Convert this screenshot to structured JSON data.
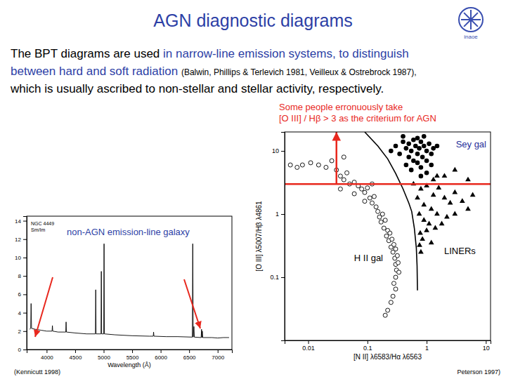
{
  "title": "AGN diagnostic diagrams",
  "logo_text": "inaoe",
  "body_lines": [
    [
      {
        "text": "The BPT diagrams are used ",
        "style": "plain"
      },
      {
        "text": "in narrow-line emission systems, to distinguish",
        "style": "highlight"
      }
    ],
    [
      {
        "text": "between hard and soft radiation ",
        "style": "highlight"
      },
      {
        "text": "(Balwin, Phillips & Terlevich 1981, Veilleux & Ostrebrock 1987),",
        "style": "citation"
      }
    ],
    [
      {
        "text": "which is usually ascribed to non-stellar and stellar activity, respectively.",
        "style": "plain"
      }
    ]
  ],
  "chart_data": [
    {
      "type": "scatter",
      "log": true,
      "xlim": [
        0.004,
        12
      ],
      "ylim": [
        0.01,
        20
      ],
      "xticks": [
        0.01,
        0.1,
        1,
        10
      ],
      "yticks": [
        0.1,
        1,
        10
      ],
      "x_label": "[N II] λ6583/Hα λ6563",
      "y_label": "[O III] λ5007/Hβ λ4861",
      "region_labels": [
        "Sey gal",
        "H II gal",
        "LINERs"
      ],
      "note": [
        "Some people erronuously take",
        "[O III] / Hβ > 3 as the criterium for AGN"
      ],
      "source": "Peterson 1997)",
      "series": [
        {
          "type": "scatter",
          "marker": "open-circle",
          "color": "#000000",
          "x": [
            0.005,
            0.0065,
            0.008,
            0.011,
            0.015,
            0.02,
            0.025,
            0.03,
            0.035,
            0.04,
            0.045,
            0.05,
            0.06,
            0.07,
            0.08,
            0.09,
            0.1,
            0.11,
            0.12,
            0.13,
            0.14,
            0.15,
            0.16,
            0.18,
            0.17,
            0.2,
            0.19,
            0.22,
            0.21,
            0.24,
            0.23,
            0.26,
            0.25,
            0.28,
            0.27,
            0.3,
            0.29,
            0.32,
            0.3,
            0.33,
            0.31,
            0.34,
            0.3,
            0.28,
            0.3,
            0.27,
            0.25,
            0.22,
            0.2,
            0.035,
            0.06,
            0.09,
            0.12,
            0.04
          ],
          "values": [
            6,
            5.5,
            6,
            6.5,
            6,
            5.5,
            7,
            5,
            4,
            3.5,
            4.5,
            3,
            3.2,
            2.8,
            2.5,
            2.2,
            2.6,
            1.8,
            1.5,
            1.9,
            1.3,
            1.1,
            0.9,
            1,
            0.75,
            0.8,
            0.6,
            0.55,
            0.45,
            0.5,
            0.38,
            0.4,
            0.3,
            0.33,
            0.25,
            0.28,
            0.2,
            0.22,
            0.16,
            0.17,
            0.13,
            0.12,
            0.1,
            0.08,
            0.065,
            0.05,
            0.04,
            0.03,
            0.025,
            2.5,
            2.1,
            1.6,
            3,
            8
          ]
        },
        {
          "type": "scatter",
          "marker": "filled-circle",
          "color": "#000000",
          "x": [
            0.3,
            0.35,
            0.4,
            0.45,
            0.5,
            0.55,
            0.6,
            0.65,
            0.7,
            0.75,
            0.8,
            0.85,
            0.9,
            1,
            1.1,
            1.2,
            1.3,
            0.5,
            0.6,
            0.7,
            0.8,
            0.45,
            1,
            1.5,
            0.4,
            0.7,
            0.9,
            0.25,
            0.55,
            1.2,
            0.8,
            1
          ],
          "values": [
            12,
            9,
            14,
            11,
            13,
            10,
            15,
            12,
            9,
            11,
            14,
            8,
            12,
            10,
            13,
            9,
            11,
            8,
            7,
            6.5,
            5.5,
            6,
            7,
            12,
            17,
            16,
            17,
            10,
            5,
            6,
            4,
            4.5
          ]
        },
        {
          "type": "scatter",
          "marker": "triangle",
          "color": "#000000",
          "x": [
            0.6,
            0.8,
            1,
            1.3,
            1.6,
            2,
            2.5,
            3,
            4,
            5,
            0.7,
            0.9,
            1.2,
            1.5,
            2.2,
            3,
            0.75,
            0.9,
            1.1,
            1.4,
            1.8,
            0.78,
            0.85,
            1,
            0.76,
            1.2,
            2,
            3,
            5,
            1.5,
            6,
            0.8,
            1.3
          ],
          "values": [
            3,
            2.5,
            2.8,
            2,
            2.6,
            1.8,
            1.5,
            2.2,
            1.6,
            1.2,
            1.8,
            1.4,
            1.2,
            1,
            0.9,
            1,
            1,
            0.8,
            0.7,
            0.6,
            0.7,
            0.5,
            0.4,
            0.55,
            0.32,
            0.35,
            4,
            5,
            3.5,
            4,
            2,
            0.25,
            3.5
          ]
        },
        {
          "type": "line",
          "line_style": "solid",
          "color": "#000000",
          "x": [
            0.09,
            0.15,
            0.22,
            0.3,
            0.4,
            0.5,
            0.56,
            0.62,
            0.67,
            0.69,
            0.7
          ],
          "values": [
            20,
            12,
            7.5,
            4.4,
            2.5,
            1.5,
            1.1,
            0.6,
            0.29,
            0.15,
            0.062
          ]
        },
        {
          "type": "line",
          "line_style": "solid",
          "color": "#e8281e",
          "x": [
            0.004,
            12
          ],
          "values": [
            3,
            3
          ]
        },
        {
          "type": "line",
          "line_style": "solid",
          "marker": "arrow",
          "color": "#e8281e",
          "x": [
            0.03,
            0.03
          ],
          "values": [
            3,
            20
          ]
        }
      ]
    },
    {
      "type": "line",
      "xlim": [
        3650,
        7250
      ],
      "ylim": [
        0,
        14.5
      ],
      "xticks": [
        4000,
        4500,
        5000,
        5500,
        6000,
        6500,
        7000
      ],
      "yticks": [
        0,
        2,
        4,
        6,
        8,
        10,
        12,
        14
      ],
      "x_label": "Wavelength (Å)",
      "inset_labels": [
        "NGC 4449",
        "Sm/Im"
      ],
      "annotation": "non-AGN emission-line galaxy",
      "source": "(Kennicutt 1998)",
      "series": [
        {
          "color": "#000000",
          "line_style": "solid",
          "x": [
            3700,
            3720,
            3727,
            3735,
            3800,
            3900,
            4000,
            4095,
            4101,
            4107,
            4200,
            4335,
            4341,
            4347,
            4500,
            4700,
            4855,
            4861,
            4867,
            4953,
            4959,
            4965,
            5001,
            5007,
            5013,
            5200,
            5500,
            5800,
            5870,
            5876,
            5882,
            6100,
            6300,
            6555,
            6563,
            6571,
            6583,
            6591,
            6710,
            6717,
            6724,
            6731,
            6738,
            6900,
            7000,
            7100,
            7200
          ],
          "values": [
            2.2,
            2.3,
            5,
            2.3,
            2.2,
            2.1,
            2.0,
            2.0,
            2.6,
            2.0,
            1.9,
            1.9,
            3.0,
            1.9,
            1.8,
            1.7,
            1.7,
            6.5,
            1.7,
            1.7,
            8.5,
            1.7,
            1.7,
            11.5,
            1.7,
            1.6,
            1.5,
            1.45,
            1.45,
            1.9,
            1.45,
            1.4,
            1.4,
            1.35,
            11.5,
            1.35,
            2.5,
            1.35,
            1.3,
            2.2,
            1.3,
            2.0,
            1.3,
            1.3,
            1.25,
            1.3,
            1.3
          ]
        }
      ]
    }
  ]
}
